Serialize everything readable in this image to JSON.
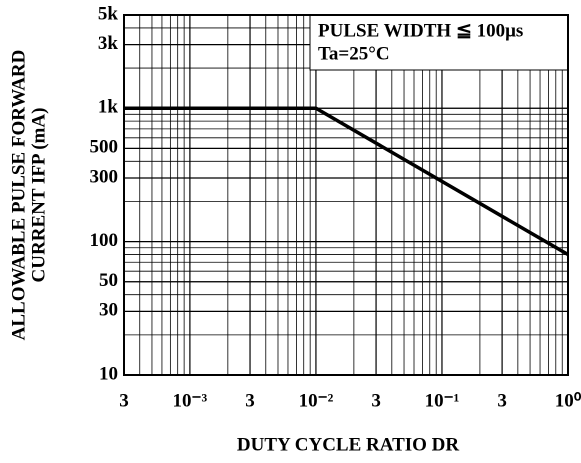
{
  "chart_data": {
    "type": "line",
    "y_label": [
      "ALLOWABLE PULSE FORWARD",
      "CURRENT IFP (mA)"
    ],
    "x_label": "DUTY CYCLE RATIO DR",
    "annotations": [
      "PULSE WIDTH ≦ 100μs",
      "Ta=25°C"
    ],
    "series": [
      {
        "x": [
          0.0003,
          0.01,
          1
        ],
        "values": [
          1000,
          1000,
          80
        ],
        "color": "#000000"
      }
    ],
    "xlim": [
      0.0003,
      1
    ],
    "ylim": [
      10,
      5000
    ],
    "xscale": "log",
    "yscale": "log",
    "grid": true,
    "xticks": [
      {
        "value": 0.0003,
        "label": "3"
      },
      {
        "value": 0.001,
        "label": "10⁻³"
      },
      {
        "value": 0.003,
        "label": "3"
      },
      {
        "value": 0.01,
        "label": "10⁻²"
      },
      {
        "value": 0.03,
        "label": "3"
      },
      {
        "value": 0.1,
        "label": "10⁻¹"
      },
      {
        "value": 0.3,
        "label": "3"
      },
      {
        "value": 1,
        "label": "10⁰"
      }
    ],
    "yticks": [
      {
        "value": 10,
        "label": "10"
      },
      {
        "value": 30,
        "label": "30"
      },
      {
        "value": 50,
        "label": "50"
      },
      {
        "value": 100,
        "label": "100"
      },
      {
        "value": 300,
        "label": "300"
      },
      {
        "value": 500,
        "label": "500"
      },
      {
        "value": 1000,
        "label": "1k"
      },
      {
        "value": 3000,
        "label": "3k"
      },
      {
        "value": 5000,
        "label": "5k"
      }
    ]
  }
}
